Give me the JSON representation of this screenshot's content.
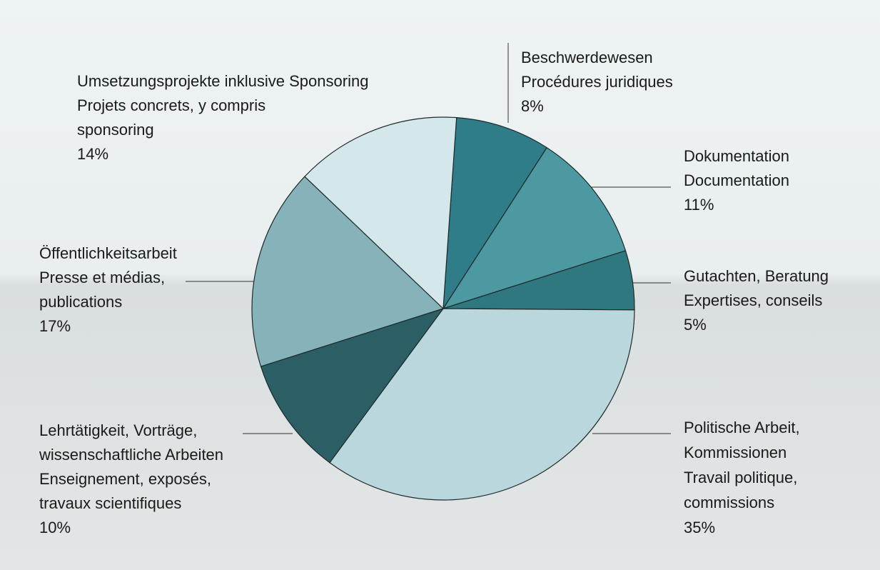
{
  "chart_data": {
    "type": "pie",
    "categories": [
      [
        "Beschwerdewesen",
        "Procédures juridiques"
      ],
      [
        "Dokumentation",
        "Documentation"
      ],
      [
        "Gutachten, Beratung",
        "Expertises, conseils"
      ],
      [
        "Politische Arbeit,",
        "Kommissionen",
        "Travail politique,",
        "commissions"
      ],
      [
        "Lehrtätigkeit, Vorträge,",
        "wissenschaftliche Arbeiten",
        "Enseignement, exposés,",
        "travaux scientifiques"
      ],
      [
        "Öffentlichkeitsarbeit",
        "Presse et médias,",
        "publications"
      ],
      [
        "Umsetzungsprojekte inklusive Sponsoring",
        "Projets concrets, y compris",
        "sponsoring"
      ]
    ],
    "values": [
      8,
      11,
      5,
      35,
      10,
      17,
      14
    ],
    "value_labels": [
      "8%",
      "11%",
      "5%",
      "35%",
      "10%",
      "17%",
      "14%"
    ],
    "colors": [
      "#2f7d88",
      "#4c99a2",
      "#2f7880",
      "#b9d7dc",
      "#2c5e65",
      "#86b2b9",
      "#d4e8eb"
    ]
  }
}
